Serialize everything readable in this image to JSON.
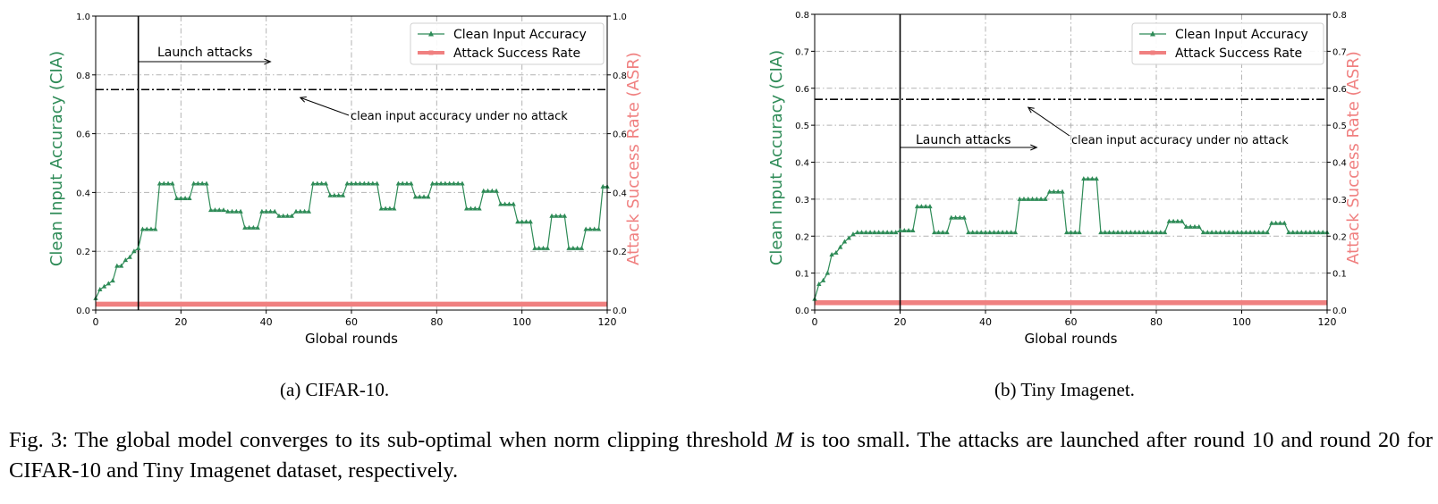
{
  "charts": [
    {
      "id": "a",
      "caption": "(a) CIFAR-10.",
      "chart_data": {
        "type": "line",
        "xlabel": "Global rounds",
        "ylabel": "Clean Input Accuracy (CIA)",
        "y2label": "Attack Success Rate (ASR)",
        "xlim": [
          0,
          120
        ],
        "ylim": [
          0,
          1.0
        ],
        "y2lim": [
          0,
          1.0
        ],
        "xticks": [
          "0",
          "20",
          "40",
          "60",
          "80",
          "100",
          "120"
        ],
        "yticks": [
          "0.0",
          "0.2",
          "0.4",
          "0.6",
          "0.8",
          "1.0"
        ],
        "y2ticks": [
          "0.0",
          "0.2",
          "0.4",
          "0.6",
          "0.8",
          "1.0"
        ],
        "grid": true,
        "legend": {
          "position": "top-right",
          "entries": [
            "Clean Input Accuracy",
            "Attack Success Rate"
          ]
        },
        "reference_line": {
          "label": "clean input accuracy under no attack",
          "y": 0.75
        },
        "attack_round": 10,
        "launch_label": "Launch attacks",
        "series": [
          {
            "name": "Clean Input Accuracy",
            "color": "#2e8b57",
            "x": [
              0,
              1,
              2,
              3,
              4,
              5,
              6,
              7,
              8,
              9,
              10,
              11,
              12,
              13,
              14,
              15,
              16,
              17,
              18,
              19,
              20,
              21,
              22,
              23,
              24,
              25,
              26,
              27,
              28,
              29,
              30,
              31,
              32,
              33,
              34,
              35,
              36,
              37,
              38,
              39,
              40,
              41,
              42,
              43,
              44,
              45,
              46,
              47,
              48,
              49,
              50,
              51,
              52,
              53,
              54,
              55,
              56,
              57,
              58,
              59,
              60,
              61,
              62,
              63,
              64,
              65,
              66,
              67,
              68,
              69,
              70,
              71,
              72,
              73,
              74,
              75,
              76,
              77,
              78,
              79,
              80,
              81,
              82,
              83,
              84,
              85,
              86,
              87,
              88,
              89,
              90,
              91,
              92,
              93,
              94,
              95,
              96,
              97,
              98,
              99,
              100,
              101,
              102,
              103,
              104,
              105,
              106,
              107,
              108,
              109,
              110,
              111,
              112,
              113,
              114,
              115,
              116,
              117,
              118,
              119,
              120
            ],
            "y": [
              0.04,
              0.07,
              0.08,
              0.09,
              0.1,
              0.15,
              0.15,
              0.17,
              0.18,
              0.2,
              0.21,
              0.275,
              0.275,
              0.275,
              0.275,
              0.43,
              0.43,
              0.43,
              0.43,
              0.38,
              0.38,
              0.38,
              0.38,
              0.43,
              0.43,
              0.43,
              0.43,
              0.34,
              0.34,
              0.34,
              0.34,
              0.335,
              0.335,
              0.335,
              0.335,
              0.28,
              0.28,
              0.28,
              0.28,
              0.335,
              0.335,
              0.335,
              0.335,
              0.32,
              0.32,
              0.32,
              0.32,
              0.335,
              0.335,
              0.335,
              0.335,
              0.43,
              0.43,
              0.43,
              0.43,
              0.39,
              0.39,
              0.39,
              0.39,
              0.43,
              0.43,
              0.43,
              0.43,
              0.43,
              0.43,
              0.43,
              0.43,
              0.345,
              0.345,
              0.345,
              0.345,
              0.43,
              0.43,
              0.43,
              0.43,
              0.385,
              0.385,
              0.385,
              0.385,
              0.43,
              0.43,
              0.43,
              0.43,
              0.43,
              0.43,
              0.43,
              0.43,
              0.345,
              0.345,
              0.345,
              0.345,
              0.405,
              0.405,
              0.405,
              0.405,
              0.36,
              0.36,
              0.36,
              0.36,
              0.3,
              0.3,
              0.3,
              0.3,
              0.21,
              0.21,
              0.21,
              0.21,
              0.32,
              0.32,
              0.32,
              0.32,
              0.21,
              0.21,
              0.21,
              0.21,
              0.275,
              0.275,
              0.275,
              0.275,
              0.42,
              0.42
            ]
          },
          {
            "name": "Attack Success Rate",
            "color": "#f08080",
            "x": [
              0,
              120
            ],
            "y": [
              0.02,
              0.02
            ]
          }
        ]
      }
    },
    {
      "id": "b",
      "caption": "(b) Tiny Imagenet.",
      "chart_data": {
        "type": "line",
        "xlabel": "Global rounds",
        "ylabel": "Clean Input Accuracy (CIA)",
        "y2label": "Attack Success Rate (ASR)",
        "xlim": [
          0,
          120
        ],
        "ylim": [
          0,
          0.8
        ],
        "y2lim": [
          0,
          0.8
        ],
        "xticks": [
          "0",
          "20",
          "40",
          "60",
          "80",
          "100",
          "120"
        ],
        "yticks": [
          "0.0",
          "0.1",
          "0.2",
          "0.3",
          "0.4",
          "0.5",
          "0.6",
          "0.7",
          "0.8"
        ],
        "y2ticks": [
          "0.0",
          "0.1",
          "0.2",
          "0.3",
          "0.4",
          "0.5",
          "0.6",
          "0.7",
          "0.8"
        ],
        "grid": true,
        "legend": {
          "position": "top-right",
          "entries": [
            "Clean Input Accuracy",
            "Attack Success Rate"
          ]
        },
        "reference_line": {
          "label": "clean input accuracy under no attack",
          "y": 0.57
        },
        "attack_round": 20,
        "launch_label": "Launch attacks",
        "series": [
          {
            "name": "Clean Input Accuracy",
            "color": "#2e8b57",
            "x": [
              0,
              1,
              2,
              3,
              4,
              5,
              6,
              7,
              8,
              9,
              10,
              11,
              12,
              13,
              14,
              15,
              16,
              17,
              18,
              19,
              20,
              21,
              22,
              23,
              24,
              25,
              26,
              27,
              28,
              29,
              30,
              31,
              32,
              33,
              34,
              35,
              36,
              37,
              38,
              39,
              40,
              41,
              42,
              43,
              44,
              45,
              46,
              47,
              48,
              49,
              50,
              51,
              52,
              53,
              54,
              55,
              56,
              57,
              58,
              59,
              60,
              61,
              62,
              63,
              64,
              65,
              66,
              67,
              68,
              69,
              70,
              71,
              72,
              73,
              74,
              75,
              76,
              77,
              78,
              79,
              80,
              81,
              82,
              83,
              84,
              85,
              86,
              87,
              88,
              89,
              90,
              91,
              92,
              93,
              94,
              95,
              96,
              97,
              98,
              99,
              100,
              101,
              102,
              103,
              104,
              105,
              106,
              107,
              108,
              109,
              110,
              111,
              112,
              113,
              114,
              115,
              116,
              117,
              118,
              119,
              120
            ],
            "y": [
              0.03,
              0.07,
              0.08,
              0.1,
              0.15,
              0.155,
              0.17,
              0.185,
              0.195,
              0.205,
              0.21,
              0.21,
              0.21,
              0.21,
              0.21,
              0.21,
              0.21,
              0.21,
              0.21,
              0.21,
              0.215,
              0.215,
              0.215,
              0.215,
              0.28,
              0.28,
              0.28,
              0.28,
              0.21,
              0.21,
              0.21,
              0.21,
              0.25,
              0.25,
              0.25,
              0.25,
              0.21,
              0.21,
              0.21,
              0.21,
              0.21,
              0.21,
              0.21,
              0.21,
              0.21,
              0.21,
              0.21,
              0.21,
              0.3,
              0.3,
              0.3,
              0.3,
              0.3,
              0.3,
              0.3,
              0.32,
              0.32,
              0.32,
              0.32,
              0.21,
              0.21,
              0.21,
              0.21,
              0.355,
              0.355,
              0.355,
              0.355,
              0.21,
              0.21,
              0.21,
              0.21,
              0.21,
              0.21,
              0.21,
              0.21,
              0.21,
              0.21,
              0.21,
              0.21,
              0.21,
              0.21,
              0.21,
              0.21,
              0.24,
              0.24,
              0.24,
              0.24,
              0.225,
              0.225,
              0.225,
              0.225,
              0.21,
              0.21,
              0.21,
              0.21,
              0.21,
              0.21,
              0.21,
              0.21,
              0.21,
              0.21,
              0.21,
              0.21,
              0.21,
              0.21,
              0.21,
              0.21,
              0.235,
              0.235,
              0.235,
              0.235,
              0.21,
              0.21,
              0.21,
              0.21,
              0.21,
              0.21,
              0.21,
              0.21,
              0.21,
              0.21
            ]
          },
          {
            "name": "Attack Success Rate",
            "color": "#f08080",
            "x": [
              0,
              120
            ],
            "y": [
              0.02,
              0.02
            ]
          }
        ]
      }
    }
  ],
  "figure_caption": {
    "prefix": "Fig. 3: The global model converges to its sub-optimal when norm clipping threshold ",
    "math": "M",
    "suffix": " is too small. The attacks are launched after round 10 and round 20 for CIFAR-10 and Tiny Imagenet dataset, respectively."
  }
}
